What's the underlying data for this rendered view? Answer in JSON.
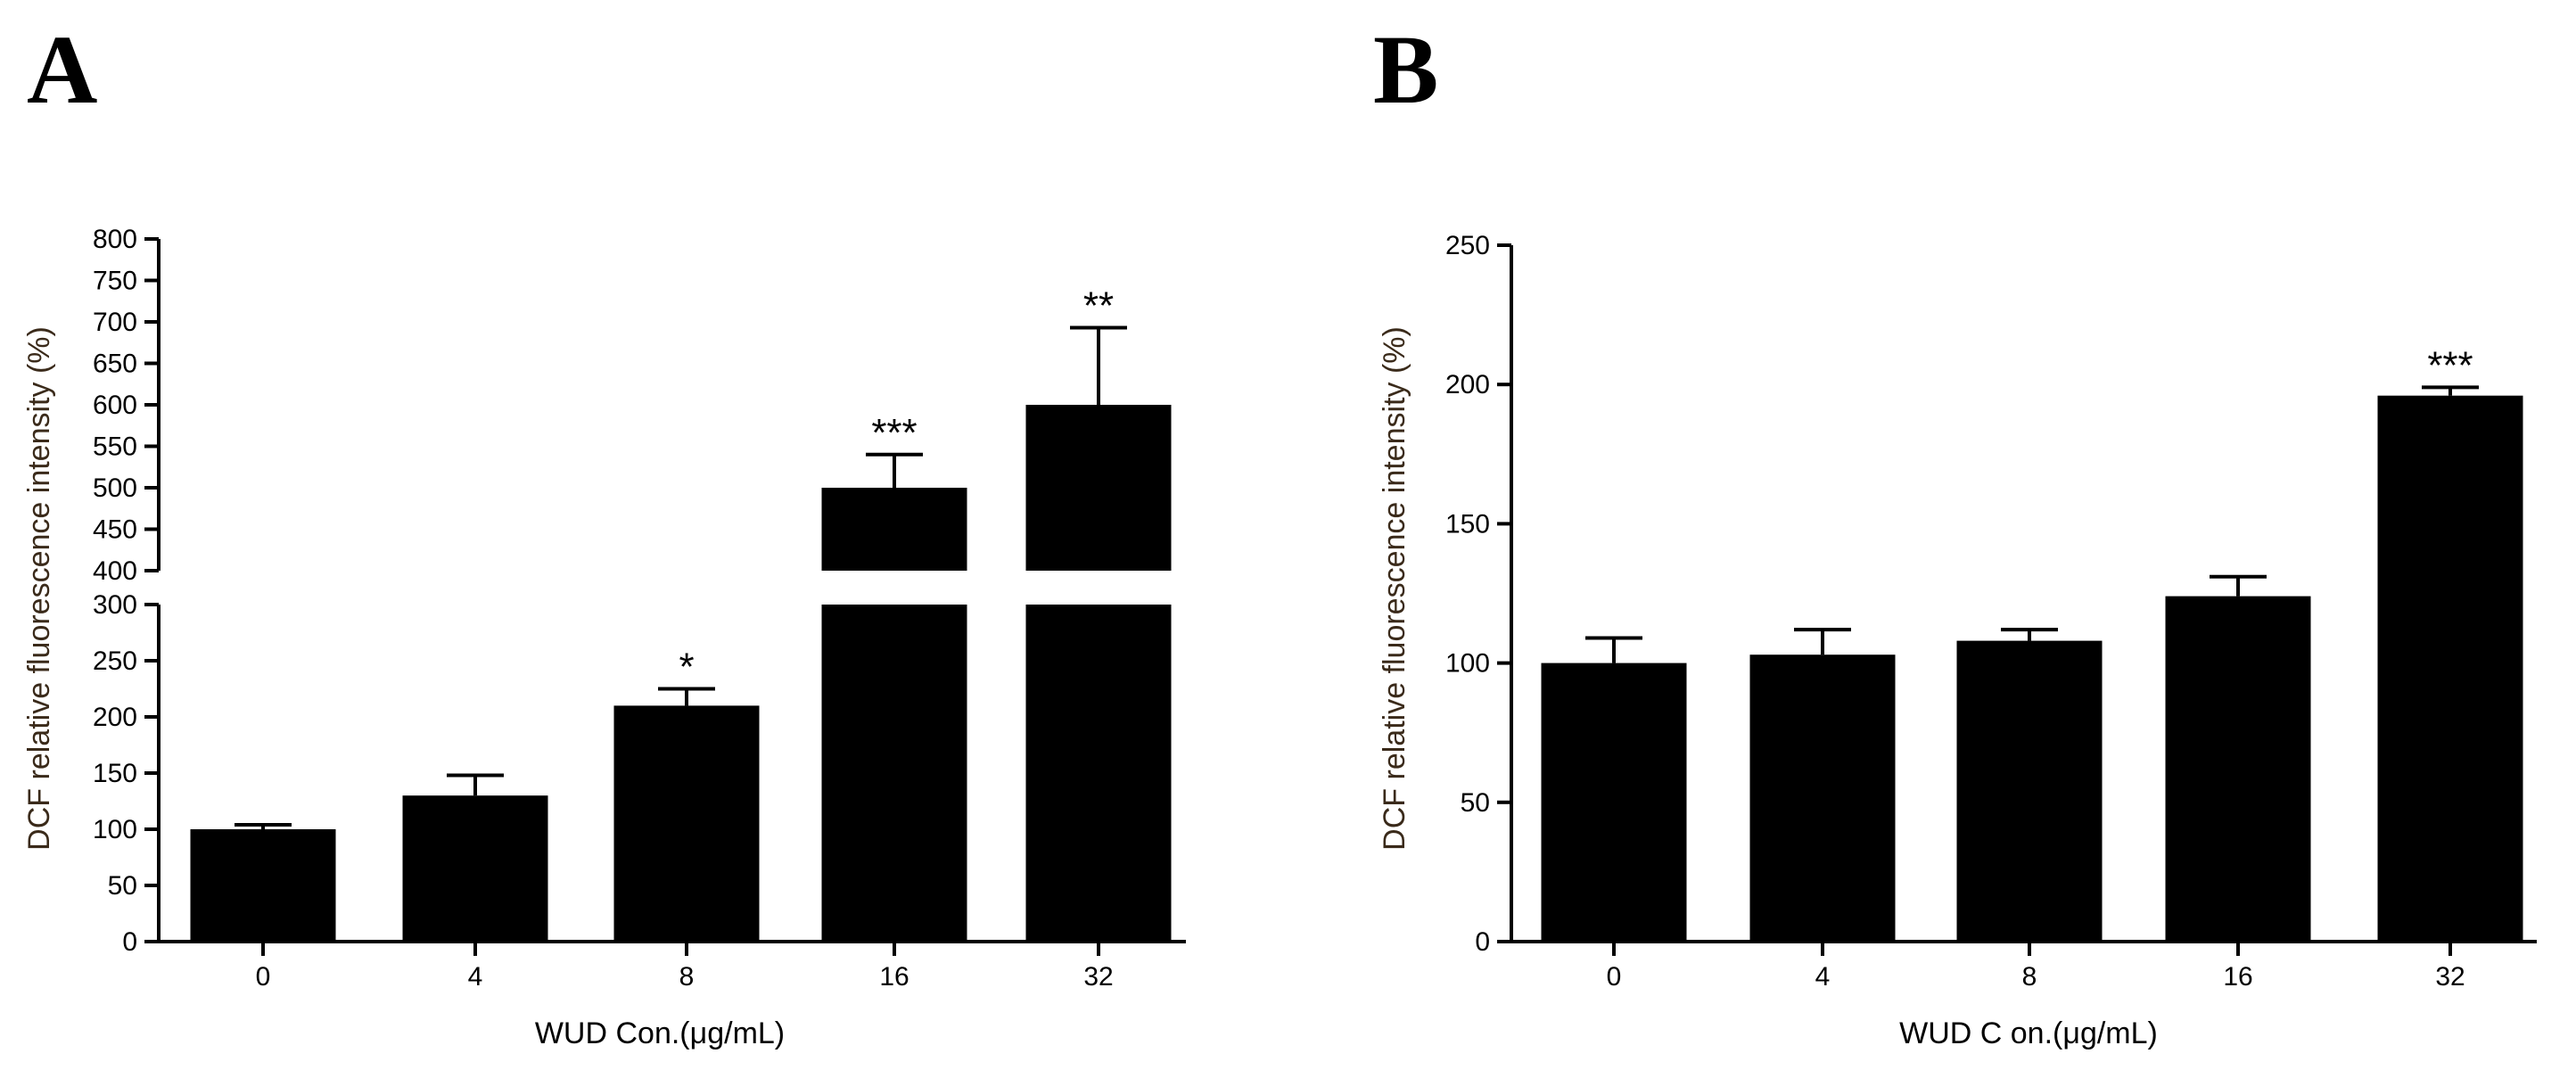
{
  "colors": {
    "bar": "#000000",
    "axis": "#000000",
    "ylabel_text": "#3a2a1a",
    "background": "#ffffff"
  },
  "chart_data": [
    {
      "panel": "A",
      "type": "bar",
      "title": "",
      "xlabel": "WUD Con.(μg/mL)",
      "ylabel": "DCF relative fluorescence intensity (%)",
      "categories": [
        "0",
        "4",
        "8",
        "16",
        "32"
      ],
      "values": [
        100,
        130,
        210,
        500,
        600
      ],
      "errors": [
        4,
        18,
        15,
        40,
        93
      ],
      "significance": [
        "",
        "",
        "*",
        "***",
        "**"
      ],
      "y_axis_break": true,
      "lower_segment": {
        "ylim": [
          0,
          300
        ],
        "ticks": [
          "0",
          "50",
          "100",
          "150",
          "200",
          "250",
          "300"
        ]
      },
      "upper_segment": {
        "ylim": [
          400,
          800
        ],
        "ticks": [
          "400",
          "450",
          "500",
          "550",
          "600",
          "650",
          "700",
          "750",
          "800"
        ]
      },
      "grid": false,
      "legend": "none"
    },
    {
      "panel": "B",
      "type": "bar",
      "title": "",
      "xlabel": "WUD C on.(μg/mL)",
      "ylabel": "DCF relative fluorescence intensity (%)",
      "categories": [
        "0",
        "4",
        "8",
        "16",
        "32"
      ],
      "values": [
        100,
        103,
        108,
        124,
        196
      ],
      "errors": [
        9,
        9,
        4,
        7,
        3
      ],
      "significance": [
        "",
        "",
        "",
        "",
        "***"
      ],
      "y_axis_break": false,
      "ylim": [
        0,
        250
      ],
      "ticks": [
        "0",
        "50",
        "100",
        "150",
        "200",
        "250"
      ],
      "grid": false,
      "legend": "none"
    }
  ]
}
